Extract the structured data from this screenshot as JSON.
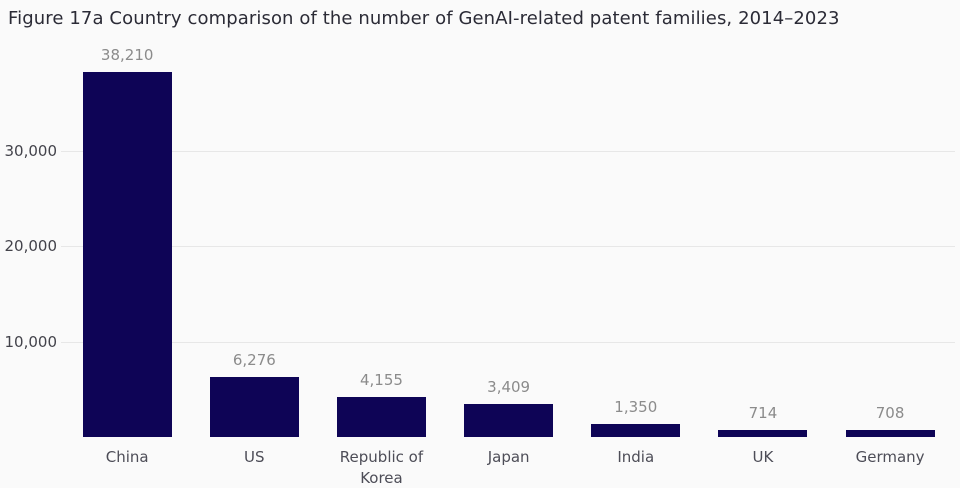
{
  "title": "Figure 17a Country comparison of the number of GenAI-related patent families, 2014–2023",
  "colors": {
    "background": "#fafafa",
    "bar": "#0e0456",
    "gridline": "#e7e7e7",
    "title_text": "#2b2b36",
    "value_label": "#8b8b8b",
    "ytick_label": "#43434b",
    "category_label": "#4d4d57"
  },
  "chart_data": {
    "type": "bar",
    "title": "Figure 17a Country comparison of the number of GenAI-related patent families, 2014–2023",
    "categories": [
      "China",
      "US",
      "Republic of Korea",
      "Japan",
      "India",
      "UK",
      "Germany"
    ],
    "values": [
      38210,
      6276,
      4155,
      3409,
      1350,
      714,
      708
    ],
    "value_labels": [
      "38,210",
      "6,276",
      "4,155",
      "3,409",
      "1,350",
      "714",
      "708"
    ],
    "xlabel": "",
    "ylabel": "",
    "ylim": [
      0,
      40000
    ],
    "yticks": [
      10000,
      20000,
      30000
    ],
    "ytick_labels": [
      "10,000",
      "20,000",
      "30,000"
    ],
    "grid": true,
    "legend": false,
    "orientation": "vertical"
  }
}
